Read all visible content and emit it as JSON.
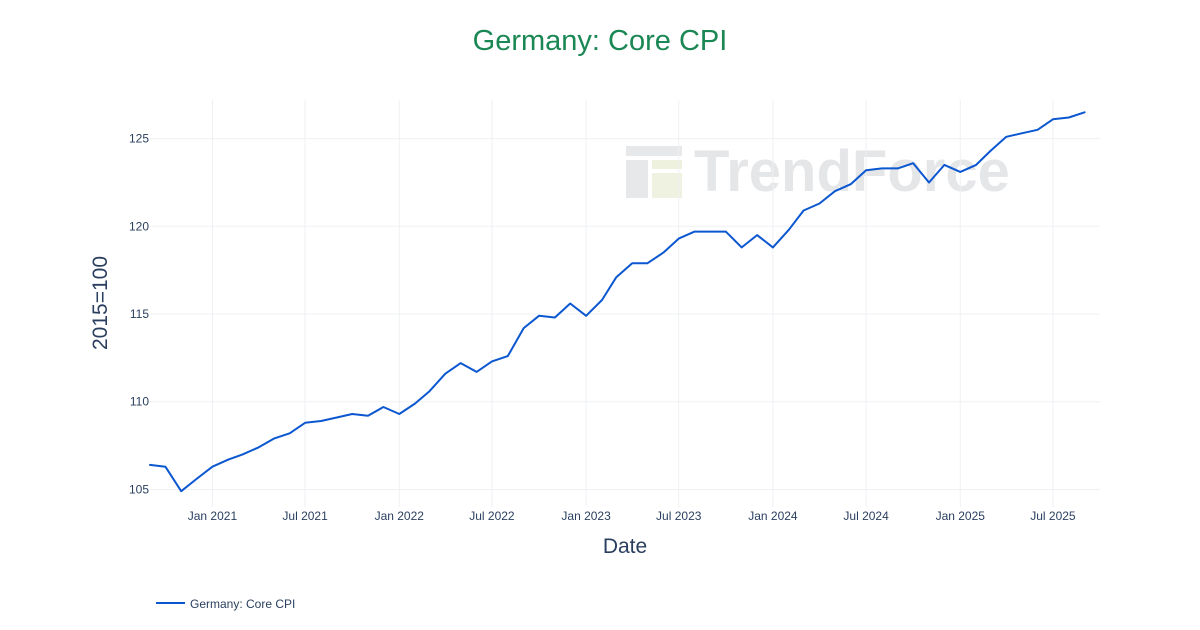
{
  "watermark": {
    "text": "TrendForce"
  },
  "chart_data": {
    "type": "line",
    "title": "Germany: Core CPI",
    "xlabel": "Date",
    "ylabel": "2015=100",
    "x_tick_labels": [
      {
        "date": "2021-01-01",
        "label": "Jan 2021"
      },
      {
        "date": "2021-07-01",
        "label": "Jul 2021"
      },
      {
        "date": "2022-01-01",
        "label": "Jan 2022"
      },
      {
        "date": "2022-07-01",
        "label": "Jul 2022"
      },
      {
        "date": "2023-01-01",
        "label": "Jan 2023"
      },
      {
        "date": "2023-07-01",
        "label": "Jul 2023"
      },
      {
        "date": "2024-01-01",
        "label": "Jan 2024"
      },
      {
        "date": "2024-07-01",
        "label": "Jul 2024"
      },
      {
        "date": "2025-01-01",
        "label": "Jan 2025"
      },
      {
        "date": "2025-07-01",
        "label": "Jul 2025"
      }
    ],
    "y_ticks": [
      105,
      110,
      115,
      120,
      125
    ],
    "xlim": [
      "2020-09-01",
      "2025-10-01"
    ],
    "ylim": [
      104.0,
      127.2
    ],
    "grid": true,
    "legend_position": "bottom-left",
    "series": [
      {
        "name": "Germany: Core CPI",
        "color": "#0b57d0",
        "x": [
          "2020-09",
          "2020-10",
          "2020-11",
          "2020-12",
          "2021-01",
          "2021-02",
          "2021-03",
          "2021-04",
          "2021-05",
          "2021-06",
          "2021-07",
          "2021-08",
          "2021-09",
          "2021-10",
          "2021-11",
          "2021-12",
          "2022-01",
          "2022-02",
          "2022-03",
          "2022-04",
          "2022-05",
          "2022-06",
          "2022-07",
          "2022-08",
          "2022-09",
          "2022-10",
          "2022-11",
          "2022-12",
          "2023-01",
          "2023-02",
          "2023-03",
          "2023-04",
          "2023-05",
          "2023-06",
          "2023-07",
          "2023-08",
          "2023-09",
          "2023-10",
          "2023-11",
          "2023-12",
          "2024-01",
          "2024-02",
          "2024-03",
          "2024-04",
          "2024-05",
          "2024-06",
          "2024-07",
          "2024-08",
          "2024-09",
          "2024-10",
          "2024-11",
          "2024-12",
          "2025-01",
          "2025-02",
          "2025-03",
          "2025-04",
          "2025-05",
          "2025-06",
          "2025-07",
          "2025-08",
          "2025-09"
        ],
        "values": [
          106.4,
          106.3,
          104.9,
          105.6,
          106.3,
          106.7,
          107.0,
          107.4,
          107.9,
          108.2,
          108.8,
          108.9,
          109.1,
          109.3,
          109.2,
          109.7,
          109.3,
          109.9,
          110.6,
          111.6,
          112.2,
          111.7,
          112.3,
          112.6,
          114.2,
          114.9,
          114.8,
          115.6,
          114.9,
          115.8,
          117.1,
          117.9,
          117.9,
          118.5,
          119.3,
          119.7,
          119.7,
          119.7,
          118.8,
          119.5,
          118.8,
          119.8,
          120.9,
          121.3,
          122.0,
          122.4,
          123.2,
          123.3,
          123.3,
          123.6,
          122.5,
          123.5,
          123.1,
          123.5,
          124.3,
          125.1,
          125.3,
          125.5,
          126.1,
          126.2,
          126.5
        ]
      }
    ]
  }
}
